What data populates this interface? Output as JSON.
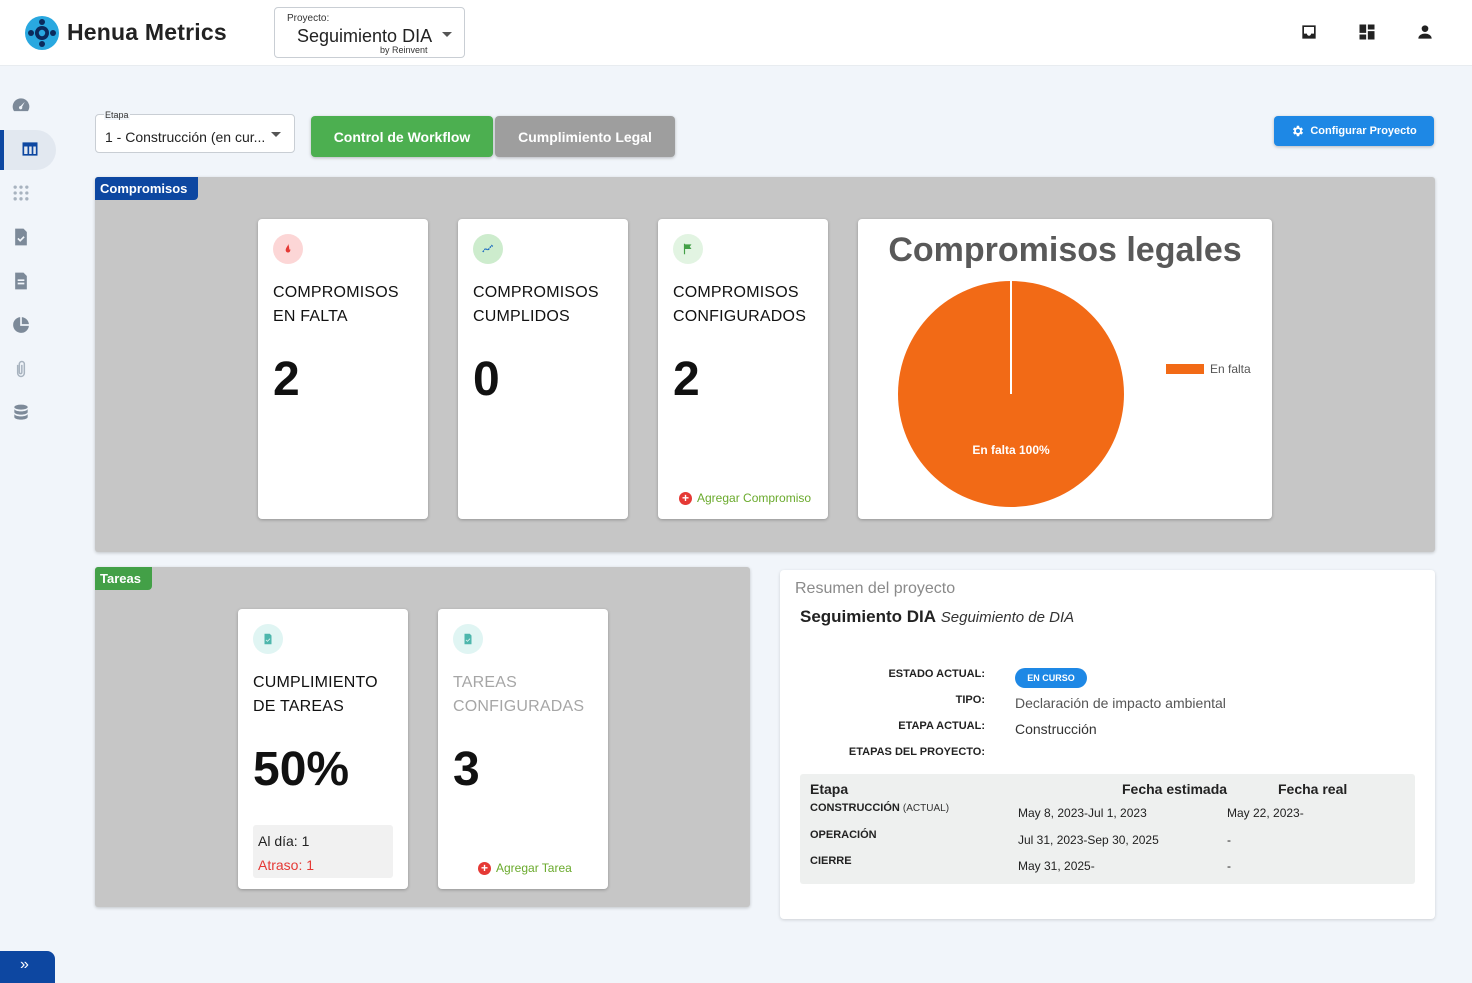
{
  "app": {
    "brand": "Henua Metrics",
    "project_label": "Proyecto:",
    "project_value": "Seguimiento DIA",
    "project_sub": "by Reinvent"
  },
  "header_icons": [
    "inbox-icon",
    "dashboard-icon",
    "user-icon"
  ],
  "sidebar": {
    "items": [
      "speedometer-icon",
      "table-icon",
      "grid-dots-icon",
      "file-check-icon",
      "document-icon",
      "pie-chart-icon",
      "paperclip-icon",
      "database-icon"
    ],
    "active": "table-icon",
    "collapse_glyph": "»"
  },
  "toolbar": {
    "etapa_label": "Etapa",
    "etapa_value": "1 - Construcción (en cur...",
    "workflow_label": "Control de Workflow",
    "legal_label": "Cumplimiento Legal",
    "config_label": "Configurar Proyecto"
  },
  "compromisos": {
    "tag": "Compromisos",
    "cards": [
      {
        "title1": "COMPROMISOS",
        "title2": "EN FALTA",
        "value": "2",
        "icon": "fire-icon"
      },
      {
        "title1": "COMPROMISOS",
        "title2": "CUMPLIDOS",
        "value": "0",
        "icon": "trend-chart-icon"
      },
      {
        "title1": "COMPROMISOS",
        "title2": "CONFIGURADOS",
        "value": "2",
        "icon": "flag-icon",
        "link": "Agregar Compromiso"
      }
    ]
  },
  "chart_data": {
    "type": "pie",
    "title": "Compromisos legales",
    "categories": [
      "En falta"
    ],
    "values": [
      100
    ],
    "slice_labels": [
      "En falta 100%"
    ],
    "colors": [
      "#f26a16"
    ],
    "legend": "right"
  },
  "tareas": {
    "tag": "Tareas",
    "cards": [
      {
        "title1": "CUMPLIMIENTO",
        "title2": "DE TAREAS",
        "value": "50%",
        "icon": "task-check-icon",
        "al_dia": "Al día: 1",
        "atraso": "Atraso: 1"
      },
      {
        "title1": "TAREAS",
        "title2": "CONFIGURADAS",
        "value": "3",
        "icon": "task-check-icon",
        "link": "Agregar Tarea"
      }
    ]
  },
  "summary": {
    "heading": "Resumen del proyecto",
    "name": "Seguimiento DIA",
    "description": "Seguimiento de DIA",
    "estado_key": "ESTADO ACTUAL:",
    "estado_badge": "EN CURSO",
    "tipo_key": "TIPO:",
    "tipo_val": "Declaración de impacto ambiental",
    "etapa_key": "ETAPA ACTUAL:",
    "etapa_val": "Construcción",
    "etapas_key": "ETAPAS DEL PROYECTO:",
    "columns": [
      "Etapa",
      "Fecha estimada",
      "Fecha real"
    ],
    "rows": [
      {
        "etapa": "CONSTRUCCIÓN",
        "tag": "(ACTUAL)",
        "estimada": "May 8, 2023-Jul 1, 2023",
        "real": "May 22, 2023-"
      },
      {
        "etapa": "OPERACIÓN",
        "tag": "",
        "estimada": "Jul 31, 2023-Sep 30, 2025",
        "real": "-"
      },
      {
        "etapa": "CIERRE",
        "tag": "",
        "estimada": "May 31, 2025-",
        "real": "-"
      }
    ]
  }
}
